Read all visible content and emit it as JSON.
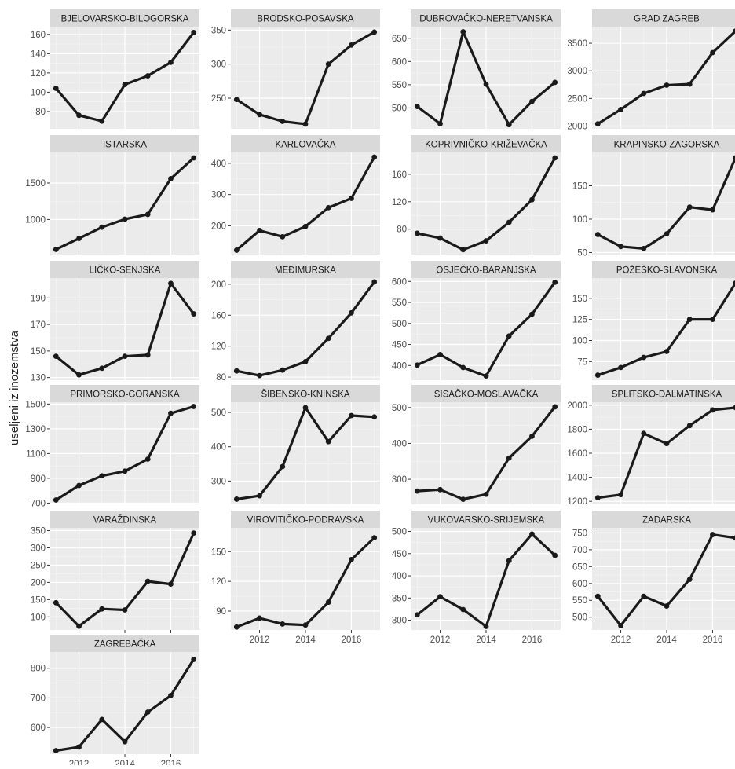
{
  "chart_data": {
    "type": "line",
    "ylabel": "useljeni iz inozemstva",
    "x": [
      2011,
      2012,
      2013,
      2014,
      2015,
      2016,
      2017
    ],
    "x_ticks": [
      2012,
      2014,
      2016
    ],
    "grid": true,
    "panels": [
      {
        "title": "BJELOVARSKO-BILOGORSKA",
        "values": [
          104,
          76,
          70,
          108,
          117,
          131,
          162
        ],
        "yticks": [
          80,
          100,
          120,
          140,
          160
        ],
        "ylim": [
          62,
          168
        ]
      },
      {
        "title": "BRODSKO-POSAVSKA",
        "values": [
          248,
          226,
          216,
          212,
          300,
          328,
          347
        ],
        "yticks": [
          250,
          300,
          350
        ],
        "ylim": [
          205,
          355
        ]
      },
      {
        "title": "DUBROVAČKO-NERETVANSKA",
        "values": [
          503,
          466,
          664,
          551,
          464,
          514,
          555
        ],
        "yticks": [
          500,
          550,
          600,
          650
        ],
        "ylim": [
          455,
          675
        ]
      },
      {
        "title": "GRAD ZAGREB",
        "values": [
          2040,
          2300,
          2590,
          2740,
          2760,
          3330,
          3720
        ],
        "yticks": [
          2000,
          2500,
          3000,
          3500
        ],
        "ylim": [
          1950,
          3800
        ]
      },
      {
        "title": "ISTARSKA",
        "values": [
          590,
          740,
          895,
          1005,
          1070,
          1560,
          1845
        ],
        "yticks": [
          1000,
          1500
        ],
        "ylim": [
          520,
          1920
        ]
      },
      {
        "title": "KARLOVAČKA",
        "values": [
          122,
          185,
          165,
          198,
          258,
          288,
          420
        ],
        "yticks": [
          200,
          300,
          400
        ],
        "ylim": [
          108,
          435
        ]
      },
      {
        "title": "KOPRIVNIČKO-KRIŽEVAČKA",
        "values": [
          74,
          67,
          50,
          63,
          90,
          123,
          184
        ],
        "yticks": [
          80,
          120,
          160
        ],
        "ylim": [
          43,
          192
        ]
      },
      {
        "title": "KRAPINSKO-ZAGORSKA",
        "values": [
          77,
          59,
          56,
          78,
          118,
          114,
          192
        ],
        "yticks": [
          50,
          100,
          150
        ],
        "ylim": [
          47,
          200
        ]
      },
      {
        "title": "LIČKO-SENJSKA",
        "values": [
          146,
          132,
          137,
          146,
          147,
          201,
          178
        ],
        "yticks": [
          130,
          150,
          170,
          190
        ],
        "ylim": [
          128,
          205
        ]
      },
      {
        "title": "MEĐIMURSKA",
        "values": [
          88,
          82,
          89,
          100,
          130,
          163,
          203
        ],
        "yticks": [
          80,
          120,
          160,
          200
        ],
        "ylim": [
          76,
          208
        ]
      },
      {
        "title": "OSJEČKO-BARANJSKA",
        "values": [
          401,
          426,
          395,
          375,
          470,
          522,
          598
        ],
        "yticks": [
          400,
          450,
          500,
          550,
          600
        ],
        "ylim": [
          365,
          608
        ]
      },
      {
        "title": "POŽEŠKO-SLAVONSKA",
        "values": [
          59,
          68,
          80,
          87,
          125,
          125,
          168
        ],
        "yticks": [
          75,
          100,
          125,
          150
        ],
        "ylim": [
          53,
          174
        ]
      },
      {
        "title": "PRIMORSKO-GORANSKA",
        "values": [
          725,
          842,
          920,
          958,
          1055,
          1425,
          1480
        ],
        "yticks": [
          700,
          900,
          1100,
          1300,
          1500
        ],
        "ylim": [
          690,
          1515
        ]
      },
      {
        "title": "ŠIBENSKO-KNINSKA",
        "values": [
          247,
          257,
          342,
          514,
          415,
          491,
          487
        ],
        "yticks": [
          300,
          400,
          500
        ],
        "ylim": [
          232,
          530
        ]
      },
      {
        "title": "SISAČKO-MOSLAVAČKA",
        "values": [
          267,
          271,
          244,
          258,
          359,
          420,
          502
        ],
        "yticks": [
          300,
          400,
          500
        ],
        "ylim": [
          230,
          515
        ]
      },
      {
        "title": "SPLITSKO-DALMATINSKA",
        "values": [
          1230,
          1255,
          1765,
          1680,
          1830,
          1960,
          1980
        ],
        "yticks": [
          1200,
          1400,
          1600,
          1800,
          2000
        ],
        "ylim": [
          1175,
          2025
        ]
      },
      {
        "title": "VARAŽDINSKA",
        "values": [
          141,
          73,
          123,
          120,
          203,
          195,
          343
        ],
        "yticks": [
          100,
          150,
          200,
          250,
          300,
          350
        ],
        "ylim": [
          62,
          358
        ]
      },
      {
        "title": "VIROVITIČKO-PODRAVSKA",
        "values": [
          74,
          83,
          77,
          76,
          99,
          142,
          164
        ],
        "yticks": [
          90,
          120,
          150
        ],
        "ylim": [
          71,
          174
        ]
      },
      {
        "title": "VUKOVARSKO-SRIJEMSKA",
        "values": [
          312,
          353,
          324,
          286,
          434,
          494,
          446
        ],
        "yticks": [
          300,
          350,
          400,
          450,
          500
        ],
        "ylim": [
          278,
          508
        ]
      },
      {
        "title": "ZADARSKA",
        "values": [
          562,
          475,
          562,
          533,
          612,
          745,
          735
        ],
        "yticks": [
          500,
          550,
          600,
          650,
          700,
          750
        ],
        "ylim": [
          462,
          765
        ]
      },
      {
        "title": "ZAGREBAČKA",
        "values": [
          522,
          534,
          627,
          552,
          652,
          708,
          830
        ],
        "yticks": [
          600,
          700,
          800
        ],
        "ylim": [
          510,
          855
        ]
      }
    ]
  }
}
